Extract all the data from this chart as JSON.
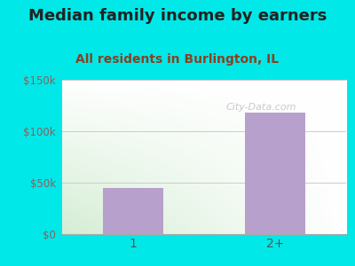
{
  "title": "Median family income by earners",
  "subtitle": "All residents in Burlington, IL",
  "categories": [
    "1",
    "2+"
  ],
  "values": [
    45000,
    118000
  ],
  "bar_color": "#b8a0cc",
  "outer_bg": "#00e8e8",
  "title_color": "#222222",
  "subtitle_color": "#8b4020",
  "ytick_color": "#8b6060",
  "xtick_color": "#555555",
  "ylim": [
    0,
    150000
  ],
  "yticks": [
    0,
    50000,
    100000,
    150000
  ],
  "ytick_labels": [
    "$0",
    "$50k",
    "$100k",
    "$150k"
  ],
  "watermark": "City-Data.com",
  "title_fontsize": 13,
  "subtitle_fontsize": 10,
  "grad_top": "#d4edd4",
  "grad_bottom": "#f8fff8",
  "grad_right": "#ffffff"
}
